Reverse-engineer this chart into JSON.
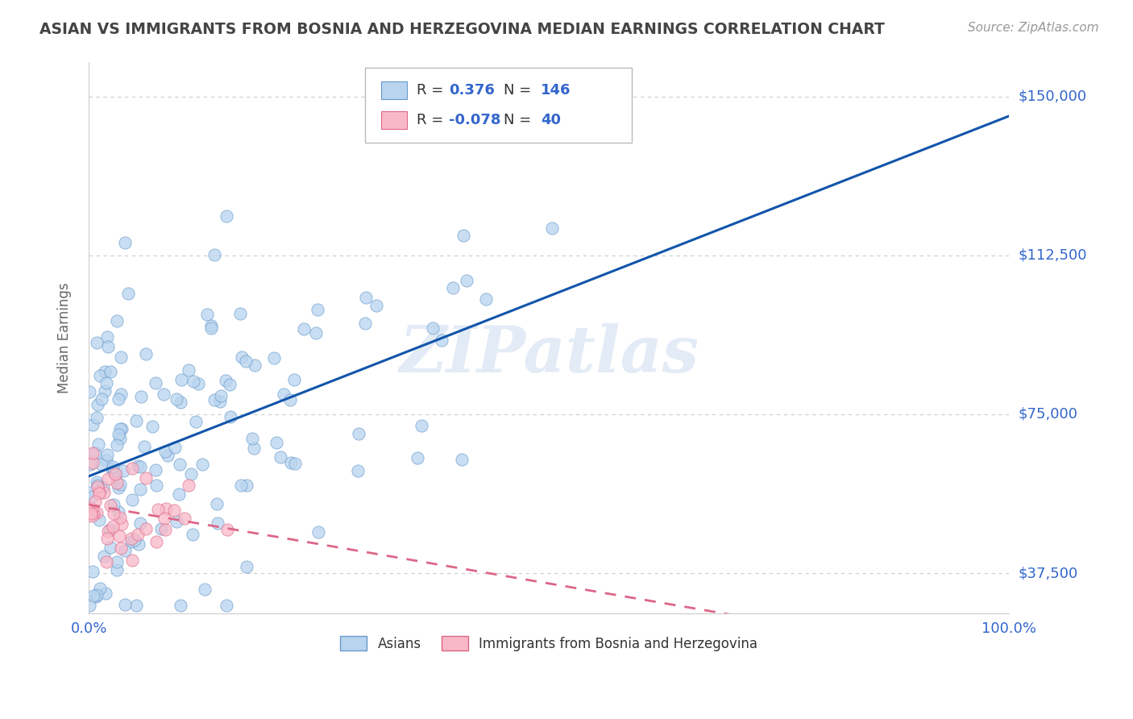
{
  "title": "ASIAN VS IMMIGRANTS FROM BOSNIA AND HERZEGOVINA MEDIAN EARNINGS CORRELATION CHART",
  "source": "Source: ZipAtlas.com",
  "ylabel": "Median Earnings",
  "xlim": [
    0,
    1
  ],
  "ylim": [
    28000,
    158000
  ],
  "yticks": [
    37500,
    75000,
    112500,
    150000
  ],
  "ytick_labels": [
    "$37,500",
    "$75,000",
    "$112,500",
    "$150,000"
  ],
  "xticks": [
    0.0,
    1.0
  ],
  "xtick_labels": [
    "0.0%",
    "100.0%"
  ],
  "series": [
    {
      "name": "Asians",
      "R": 0.376,
      "N": 146,
      "color": "#b8d4ee",
      "edge_color": "#6699cc",
      "trend_color": "#1155aa",
      "trend_style": "solid"
    },
    {
      "name": "Immigrants from Bosnia and Herzegovina",
      "R": -0.078,
      "N": 40,
      "color": "#f8b8c8",
      "edge_color": "#dd6688",
      "trend_color": "#dd6688",
      "trend_style": "dashed"
    }
  ],
  "background_color": "#ffffff",
  "grid_color": "#cccccc",
  "title_color": "#444444",
  "watermark": "ZIPatlas",
  "watermark_color": "#c8d8ee",
  "watermark_alpha": 0.5,
  "legend_R1": "0.376",
  "legend_N1": "146",
  "legend_R2": "-0.078",
  "legend_N2": "40",
  "value_color": "#3366cc"
}
